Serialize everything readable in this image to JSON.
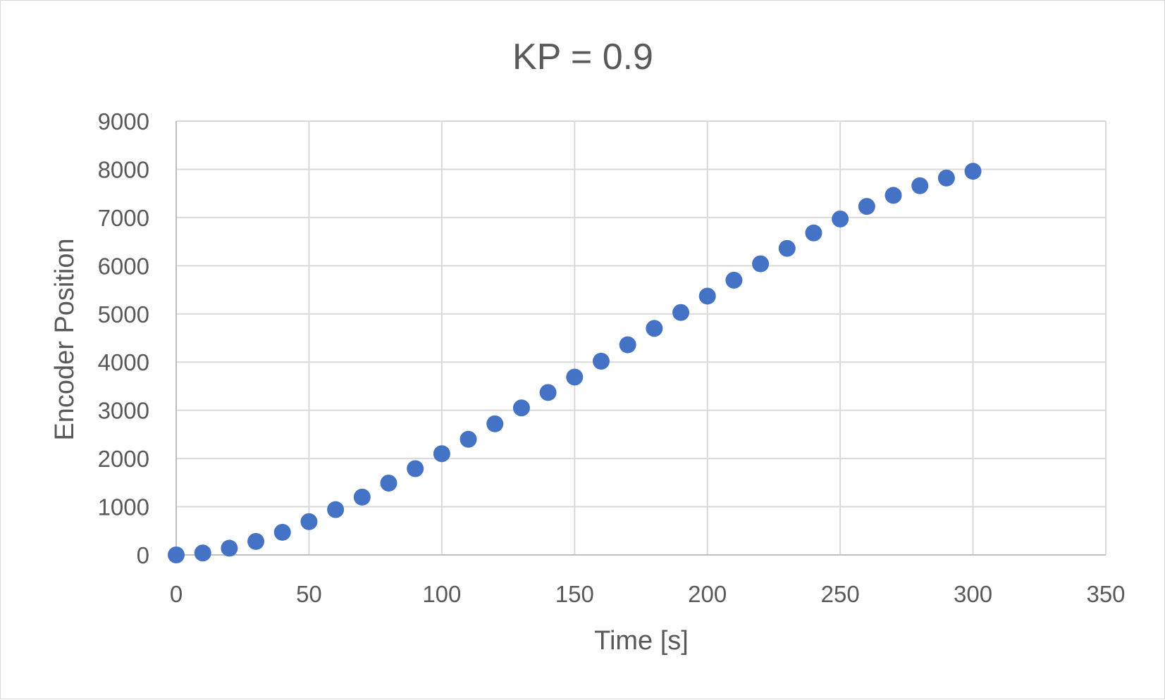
{
  "chart_data": {
    "type": "scatter",
    "title": "KP = 0.9",
    "xlabel": "Time [s]",
    "ylabel": "Encoder Position",
    "xlim": [
      0,
      350
    ],
    "ylim": [
      0,
      9000
    ],
    "x_ticks": [
      0,
      50,
      100,
      150,
      200,
      250,
      300,
      350
    ],
    "y_ticks": [
      0,
      1000,
      2000,
      3000,
      4000,
      5000,
      6000,
      7000,
      8000,
      9000
    ],
    "grid": true,
    "legend": "none",
    "marker_color": "#4472C4",
    "series": [
      {
        "x": [
          0,
          10,
          20,
          30,
          40,
          50,
          60,
          70,
          80,
          90,
          100,
          110,
          120,
          130,
          140,
          150,
          160,
          170,
          180,
          190,
          200,
          210,
          220,
          230,
          240,
          250,
          260,
          270,
          280,
          290,
          300
        ],
        "y": [
          0,
          40,
          140,
          280,
          470,
          690,
          940,
          1200,
          1490,
          1790,
          2100,
          2400,
          2720,
          3050,
          3370,
          3690,
          4020,
          4360,
          4700,
          5030,
          5370,
          5700,
          6040,
          6360,
          6680,
          6970,
          7230,
          7460,
          7660,
          7820,
          7960
        ]
      }
    ]
  }
}
